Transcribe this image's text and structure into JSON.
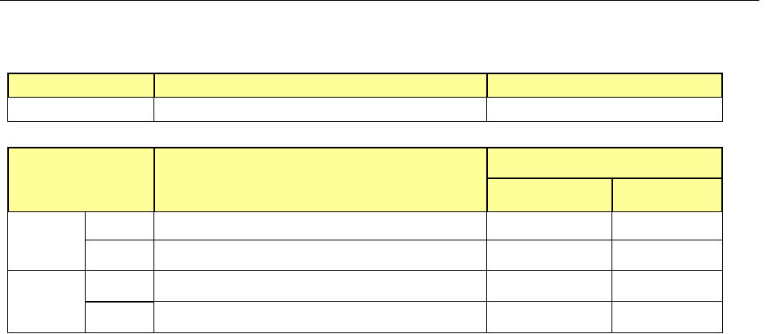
{
  "colors": {
    "header_fill": "#FFFF99",
    "line": "#000000"
  },
  "table1": {
    "header": [
      "",
      "",
      ""
    ],
    "rows": [
      [
        "",
        "",
        ""
      ]
    ]
  },
  "table2": {
    "header": {
      "col1": "",
      "col2": "",
      "group": "",
      "sub": [
        "",
        ""
      ]
    },
    "groups": [
      {
        "label": "",
        "rows": [
          [
            "",
            "",
            "",
            ""
          ],
          [
            "",
            "",
            "",
            ""
          ]
        ]
      },
      {
        "label": "",
        "rows": [
          [
            "",
            "",
            "",
            ""
          ],
          [
            "",
            "",
            "",
            ""
          ]
        ]
      }
    ]
  }
}
